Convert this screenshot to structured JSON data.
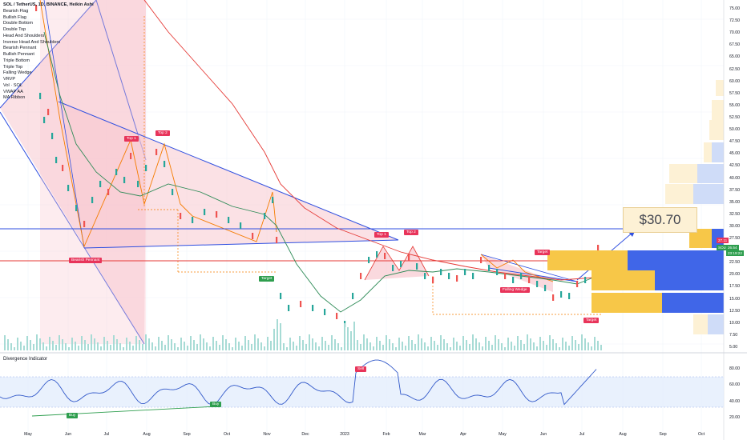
{
  "legend": {
    "symbol": "SOL / TetherUS, 1D, BINANCE, Heikin Ashi",
    "items": [
      "Bearish Flag",
      "Bullish Flag",
      "Double Bottom",
      "Double Top",
      "Head And Shoulders",
      "Inverse Head And Shoulders",
      "Bearish Pennant",
      "Bullish Pennant",
      "Triple Bottom",
      "Triple Top",
      "Falling Wedge",
      "VRVP",
      "Vol · SOL",
      "VWAP AA",
      "MA Ribbon"
    ]
  },
  "labels": {
    "top1a": "Top 1",
    "top2a": "Top 2",
    "top1b": "Top 1",
    "top2b": "Top 2",
    "bearish_pennant": "Bearish Pennant",
    "target1": "Target",
    "target2": "Target",
    "target3": "Target",
    "falling_wedge": "Falling Wedge",
    "sell": "Sell",
    "buy1": "Buy",
    "buy2": "Buy"
  },
  "target_price": "$30.70",
  "price_labels": {
    "p1": "27.11",
    "p2": "SOLUSDT",
    "p3": "26.54",
    "p4": "23:19:22"
  },
  "y_axis": [
    "75.00",
    "72.50",
    "70.00",
    "67.50",
    "65.00",
    "62.50",
    "60.00",
    "57.50",
    "55.00",
    "52.50",
    "50.00",
    "47.50",
    "45.00",
    "42.50",
    "40.00",
    "37.50",
    "35.00",
    "32.50",
    "30.00",
    "27.50",
    "22.50",
    "20.00",
    "17.50",
    "15.00",
    "12.50",
    "10.00",
    "7.50",
    "5.00"
  ],
  "x_axis": [
    "May",
    "Jun",
    "Jul",
    "Aug",
    "Sep",
    "Oct",
    "Nov",
    "Dec",
    "2023",
    "Feb",
    "Mar",
    "Apr",
    "May",
    "Jun",
    "Jul",
    "Aug",
    "Sep",
    "Oct"
  ],
  "divergence": {
    "title": "Divergence Indicator",
    "y_axis": [
      "80.00",
      "60.00",
      "40.00",
      "20.00"
    ]
  },
  "colors": {
    "pattern_fill": "#f8c9d0",
    "trend_blue": "#2f4fe0",
    "ma_red": "#e53935",
    "ma_green": "#2e8b57",
    "up": "#26a69a",
    "down": "#ef5350",
    "rsi": "#3158c9",
    "band": "#e3eefc"
  }
}
